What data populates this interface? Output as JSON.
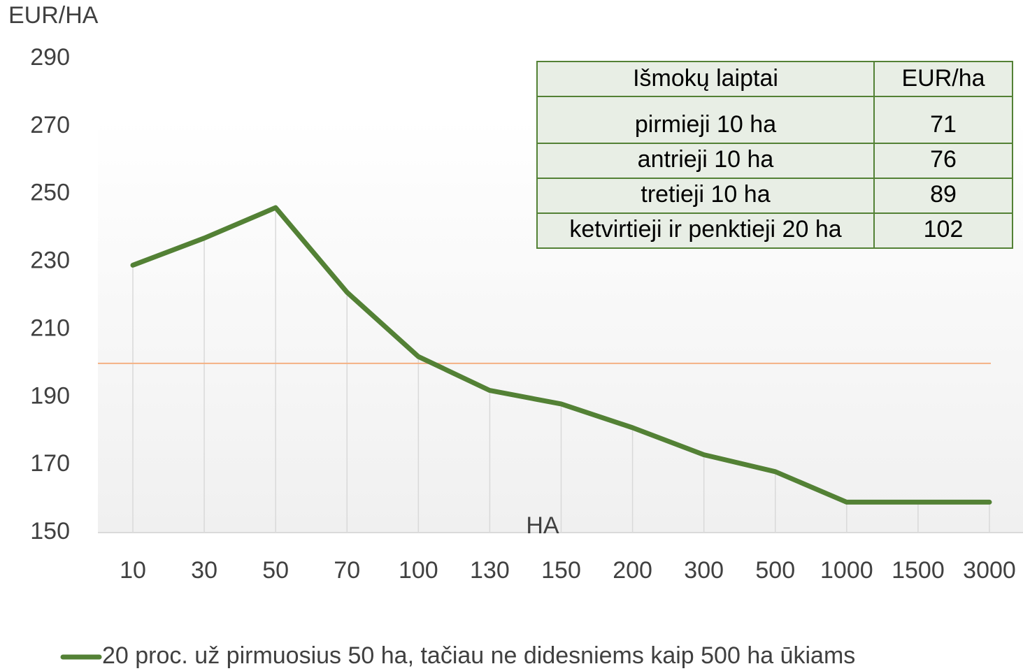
{
  "chart_data": {
    "type": "line",
    "y_axis_label": "EUR/HA",
    "x_axis_label": "HA",
    "categories": [
      "10",
      "30",
      "50",
      "70",
      "100",
      "130",
      "150",
      "200",
      "300",
      "500",
      "1000",
      "1500",
      "3000"
    ],
    "series": [
      {
        "name": "20 proc. už pirmuosius 50 ha, tačiau ne didesniems kaip 500 ha ūkiams",
        "color": "#538135",
        "values": [
          229,
          237,
          246,
          221,
          202,
          192,
          188,
          181,
          173,
          168,
          159,
          159,
          159
        ]
      }
    ],
    "reference_line": {
      "value": 200,
      "color": "#f4b183"
    },
    "ylim": [
      150,
      290
    ],
    "yticks": [
      150,
      170,
      190,
      210,
      230,
      250,
      270,
      290
    ],
    "drop_lines": true,
    "table": {
      "header": [
        "Išmokų laiptai",
        "EUR/ha"
      ],
      "rows": [
        [
          "pirmieji 10 ha",
          "71"
        ],
        [
          "antrieji 10 ha",
          "76"
        ],
        [
          "tretieji 10 ha",
          "89"
        ],
        [
          "ketvirtieji ir penktieji 20 ha",
          "102"
        ]
      ],
      "border_color": "#538135",
      "fill": "#e8eee5"
    }
  }
}
